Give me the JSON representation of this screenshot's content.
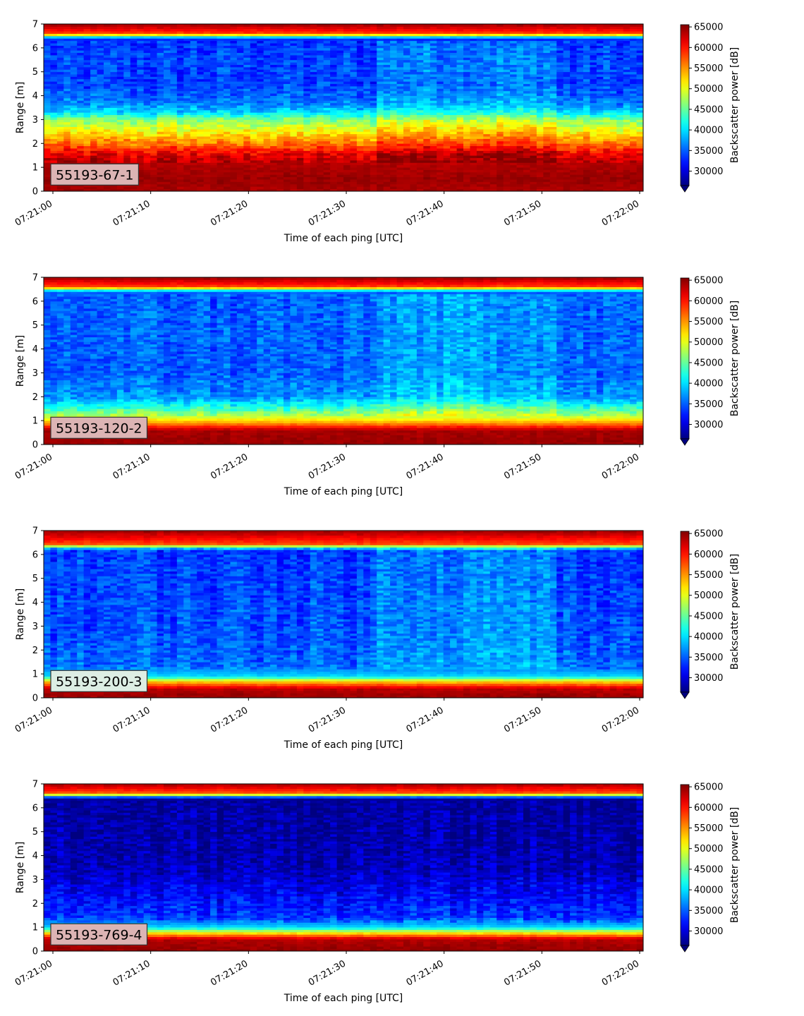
{
  "chart_data": [
    {
      "type": "heatmap",
      "label": "55193-67-1",
      "xlabel": "Time of each ping [UTC]",
      "ylabel": "Range [m]",
      "xticks": [
        "07:21:00",
        "07:21:10",
        "07:21:20",
        "07:21:30",
        "07:21:40",
        "07:21:50",
        "07:22:00"
      ],
      "yticks": [
        "0",
        "1",
        "2",
        "3",
        "4",
        "5",
        "6",
        "7"
      ],
      "ylim": [
        0,
        7
      ],
      "colorbar": {
        "label": "Backscatter power [dB]",
        "colormap": "jet",
        "ticks": [
          "30000",
          "35000",
          "40000",
          "45000",
          "50000",
          "55000",
          "60000",
          "65000"
        ],
        "range": [
          26500,
          65535
        ]
      },
      "profile": [
        {
          "range_m": 0.1,
          "power": 64000
        },
        {
          "range_m": 0.5,
          "power": 64500
        },
        {
          "range_m": 1.2,
          "power": 63500
        },
        {
          "range_m": 1.6,
          "power": 61000
        },
        {
          "range_m": 2.0,
          "power": 56000
        },
        {
          "range_m": 2.5,
          "power": 51000
        },
        {
          "range_m": 3.0,
          "power": 46000
        },
        {
          "range_m": 3.3,
          "power": 40000
        },
        {
          "range_m": 3.7,
          "power": 36000
        },
        {
          "range_m": 4.5,
          "power": 33500
        },
        {
          "range_m": 5.5,
          "power": 34000
        },
        {
          "range_m": 6.4,
          "power": 33000
        },
        {
          "range_m": 6.6,
          "power": 58000
        },
        {
          "range_m": 7.0,
          "power": 64500
        }
      ],
      "label_box_color": "#dcb4b4"
    },
    {
      "type": "heatmap",
      "label": "55193-120-2",
      "xlabel": "Time of each ping [UTC]",
      "ylabel": "Range [m]",
      "xticks": [
        "07:21:00",
        "07:21:10",
        "07:21:20",
        "07:21:30",
        "07:21:40",
        "07:21:50",
        "07:22:00"
      ],
      "yticks": [
        "0",
        "1",
        "2",
        "3",
        "4",
        "5",
        "6",
        "7"
      ],
      "ylim": [
        0,
        7
      ],
      "colorbar": {
        "label": "Backscatter power [dB]",
        "colormap": "jet",
        "ticks": [
          "30000",
          "35000",
          "40000",
          "45000",
          "50000",
          "55000",
          "60000",
          "65000"
        ],
        "range": [
          26500,
          65535
        ]
      },
      "profile": [
        {
          "range_m": 0.1,
          "power": 64500
        },
        {
          "range_m": 0.6,
          "power": 64000
        },
        {
          "range_m": 0.9,
          "power": 55000
        },
        {
          "range_m": 1.2,
          "power": 48000
        },
        {
          "range_m": 1.6,
          "power": 42000
        },
        {
          "range_m": 2.0,
          "power": 37000
        },
        {
          "range_m": 3.0,
          "power": 35000
        },
        {
          "range_m": 5.0,
          "power": 35000
        },
        {
          "range_m": 6.4,
          "power": 35000
        },
        {
          "range_m": 6.6,
          "power": 58000
        },
        {
          "range_m": 7.0,
          "power": 64500
        }
      ],
      "label_box_color": "#dcb4b4"
    },
    {
      "type": "heatmap",
      "label": "55193-200-3",
      "xlabel": "Time of each ping [UTC]",
      "ylabel": "Range [m]",
      "xticks": [
        "07:21:00",
        "07:21:10",
        "07:21:20",
        "07:21:30",
        "07:21:40",
        "07:21:50",
        "07:22:00"
      ],
      "yticks": [
        "0",
        "1",
        "2",
        "3",
        "4",
        "5",
        "6",
        "7"
      ],
      "ylim": [
        0,
        7
      ],
      "colorbar": {
        "label": "Backscatter power [dB]",
        "colormap": "jet",
        "ticks": [
          "30000",
          "35000",
          "40000",
          "45000",
          "50000",
          "55000",
          "60000",
          "65000"
        ],
        "range": [
          26500,
          65535
        ]
      },
      "profile": [
        {
          "range_m": 0.1,
          "power": 64500
        },
        {
          "range_m": 0.4,
          "power": 63000
        },
        {
          "range_m": 0.7,
          "power": 52000
        },
        {
          "range_m": 0.9,
          "power": 40000
        },
        {
          "range_m": 1.3,
          "power": 35500
        },
        {
          "range_m": 3.0,
          "power": 34500
        },
        {
          "range_m": 5.0,
          "power": 34000
        },
        {
          "range_m": 6.2,
          "power": 33500
        },
        {
          "range_m": 6.45,
          "power": 58000
        },
        {
          "range_m": 7.0,
          "power": 64500
        }
      ],
      "label_box_color": "#ddeee4"
    },
    {
      "type": "heatmap",
      "label": "55193-769-4",
      "xlabel": "Time of each ping [UTC]",
      "ylabel": "Range [m]",
      "xticks": [
        "07:21:00",
        "07:21:10",
        "07:21:20",
        "07:21:30",
        "07:21:40",
        "07:21:50",
        "07:22:00"
      ],
      "yticks": [
        "0",
        "1",
        "2",
        "3",
        "4",
        "5",
        "6",
        "7"
      ],
      "ylim": [
        0,
        7
      ],
      "colorbar": {
        "label": "Backscatter power [dB]",
        "colormap": "jet",
        "ticks": [
          "30000",
          "35000",
          "40000",
          "45000",
          "50000",
          "55000",
          "60000",
          "65000"
        ],
        "range": [
          26500,
          65535
        ]
      },
      "profile": [
        {
          "range_m": 0.1,
          "power": 64500
        },
        {
          "range_m": 0.5,
          "power": 63500
        },
        {
          "range_m": 0.8,
          "power": 50000
        },
        {
          "range_m": 1.0,
          "power": 40000
        },
        {
          "range_m": 1.4,
          "power": 33500
        },
        {
          "range_m": 2.5,
          "power": 31000
        },
        {
          "range_m": 3.5,
          "power": 28500
        },
        {
          "range_m": 6.4,
          "power": 27500
        },
        {
          "range_m": 6.6,
          "power": 57000
        },
        {
          "range_m": 7.0,
          "power": 64000
        }
      ],
      "label_box_color": "#dcb4b4"
    }
  ]
}
